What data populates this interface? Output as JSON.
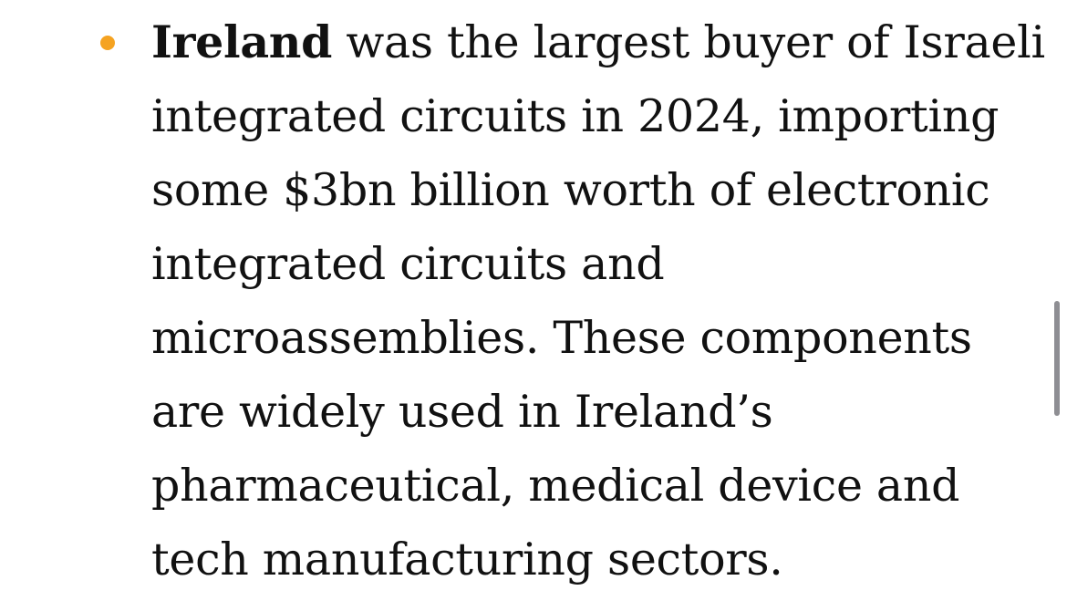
{
  "colors": {
    "bullet": "#f5a321",
    "text": "#111111",
    "scrollbar": "#8e8e93"
  },
  "article": {
    "bullet": {
      "lead": "Ireland",
      "lines": [
        " was the largest buyer of Israeli",
        "integrated circuits in 2024, importing",
        "some $3bn billion worth of electronic",
        "integrated circuits and",
        "microassemblies. These components",
        "are widely used in Ireland’s",
        "pharmaceutical, medical device and",
        "tech manufacturing sectors."
      ]
    }
  }
}
